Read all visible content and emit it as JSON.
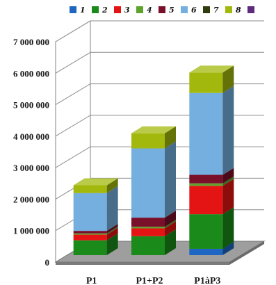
{
  "chart_data": {
    "type": "bar",
    "stacked": true,
    "three_d": true,
    "categories": [
      "P1",
      "P1+P2",
      "P1àP3"
    ],
    "series": [
      {
        "name": "1",
        "color": "#1f66c2",
        "values": [
          0,
          0,
          200000
        ]
      },
      {
        "name": "2",
        "color": "#1a8a1a",
        "values": [
          470000,
          600000,
          1100000
        ]
      },
      {
        "name": "3",
        "color": "#e41414",
        "values": [
          180000,
          250000,
          900000
        ]
      },
      {
        "name": "4",
        "color": "#5fa32e",
        "values": [
          40000,
          50000,
          80000
        ]
      },
      {
        "name": "5",
        "color": "#7a0f2a",
        "values": [
          80000,
          290000,
          270000
        ]
      },
      {
        "name": "6",
        "color": "#74afe0",
        "values": [
          1200000,
          2200000,
          2600000
        ]
      },
      {
        "name": "7",
        "color": "#2f3d0c",
        "values": [
          0,
          0,
          0
        ]
      },
      {
        "name": "8",
        "color": "#a3b80c",
        "values": [
          250000,
          480000,
          650000
        ]
      },
      {
        "name": "",
        "color": "#5d2b7d",
        "values": [
          0,
          0,
          0
        ]
      }
    ],
    "ylim": [
      0,
      7000000
    ],
    "yticks": [
      0,
      1000000,
      2000000,
      3000000,
      4000000,
      5000000,
      6000000,
      7000000
    ],
    "ytick_labels": [
      "0",
      "1 000 000",
      "2 000 000",
      "3 000 000",
      "4 000 000",
      "5 000 000",
      "6 000 000",
      "7 000 000"
    ],
    "grid": true,
    "legend_position": "top"
  }
}
